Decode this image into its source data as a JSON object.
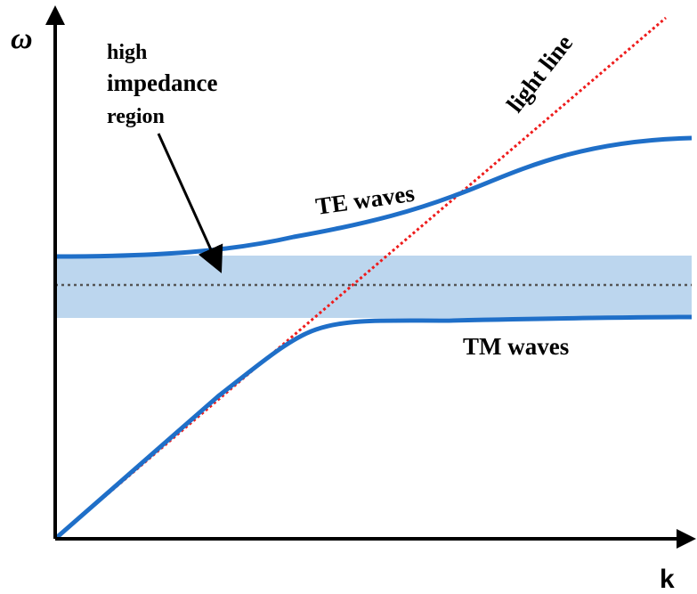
{
  "axes": {
    "y_label": "ω",
    "x_label": "k"
  },
  "labels": {
    "region_line1": "high",
    "region_line2": "impedance",
    "region_line3": "region",
    "light_line": "light line",
    "te_waves": "TE waves",
    "tm_waves": "TM waves"
  },
  "colors": {
    "axis": "#000000",
    "dispersion_curve": "#1f6fc8",
    "band_fill": "#bcd6ee",
    "light_line": "#ee1c1c",
    "midgap_line": "#555555",
    "pointer_arrow": "#000000"
  }
}
